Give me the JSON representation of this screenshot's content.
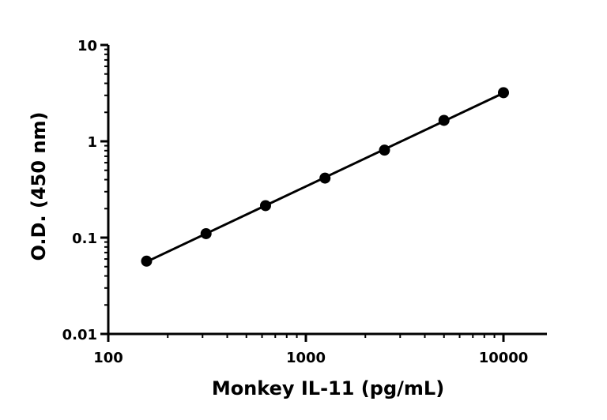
{
  "chart_data": {
    "type": "scatter",
    "title": "",
    "xlabel": "Monkey IL-11 (pg/mL)",
    "ylabel": "O.D. (450 nm)",
    "xscale": "log",
    "yscale": "log",
    "xlim": [
      100,
      15000
    ],
    "ylim": [
      0.01,
      10
    ],
    "xticks": [
      100,
      1000,
      10000
    ],
    "xtick_labels": [
      "100",
      "1000",
      "10000"
    ],
    "yticks": [
      0.01,
      0.1,
      1,
      10
    ],
    "ytick_labels": [
      "0.01",
      "0.1",
      "1",
      "10"
    ],
    "grid": false,
    "legend": "none",
    "series": [
      {
        "x": [
          156.25,
          312.5,
          625,
          1250,
          2500,
          5000,
          10000
        ],
        "y": [
          0.057,
          0.11,
          0.215,
          0.415,
          0.81,
          1.65,
          3.2
        ],
        "fit_line": true,
        "color": "#000000"
      }
    ]
  }
}
